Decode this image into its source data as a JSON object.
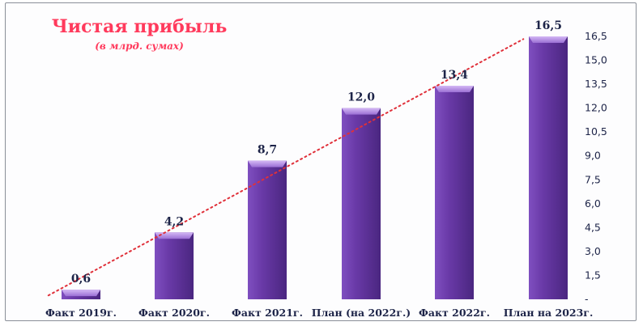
{
  "chart_data": {
    "type": "bar",
    "title": "Чистая прибыль",
    "subtitle": "(в млрд. сумах)",
    "categories": [
      "Факт 2019г.",
      "Факт 2020г.",
      "Факт 2021г.",
      "План (на 2022г.)",
      "Факт 2022г.",
      "План на 2023г."
    ],
    "values": [
      0.6,
      4.2,
      8.7,
      12.0,
      13.4,
      16.5
    ],
    "value_labels": [
      "0,6",
      "4,2",
      "8,7",
      "12,0",
      "13,4",
      "16,5"
    ],
    "yticks": [
      "-",
      "1,5",
      "3,0",
      "4,5",
      "6,0",
      "7,5",
      "9,0",
      "10,5",
      "12,0",
      "13,5",
      "15,0",
      "16,5"
    ],
    "ylim": [
      0,
      16.5
    ],
    "y_axis_position": "right",
    "trendline": "linear, dotted",
    "grid": false,
    "legend": "none",
    "colors": {
      "bar": "#6a3aa8",
      "bar_top": "#c7a8ee",
      "title": "#ff3a5c",
      "trend": "#e0303a",
      "text": "#1d2448"
    }
  }
}
